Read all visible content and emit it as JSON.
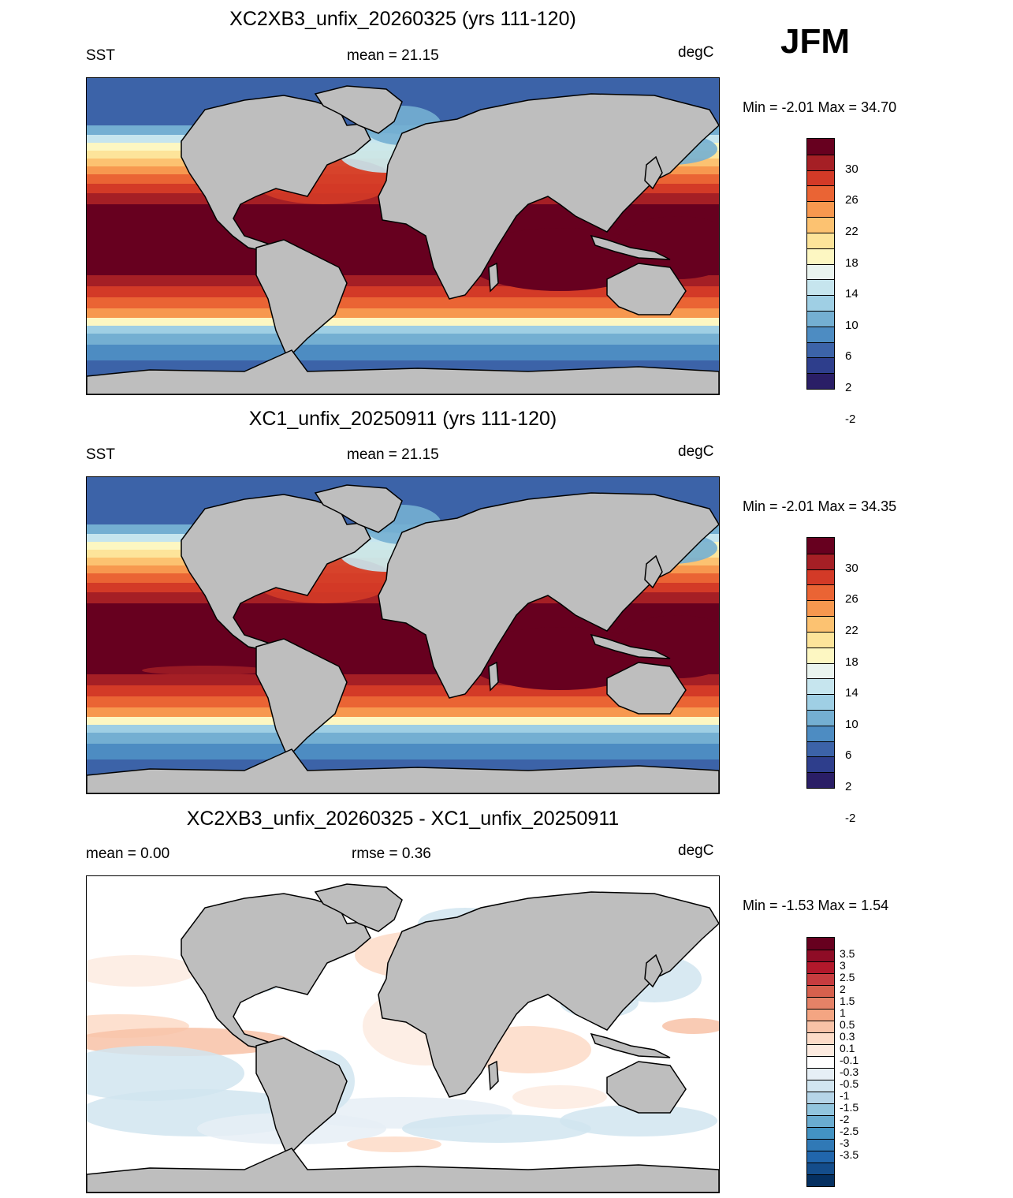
{
  "season": "JFM",
  "panels": [
    {
      "title": "XC2XB3_unfix_20260325 (yrs 111-120)",
      "left_label": "SST",
      "center_label": "mean =  21.15",
      "units": "degC",
      "minmax": "Min =  -2.01 Max =  34.70",
      "kind": "sst"
    },
    {
      "title": "XC1_unfix_20250911 (yrs 111-120)",
      "left_label": "SST",
      "center_label": "mean =  21.15",
      "units": "degC",
      "minmax": "Min =  -2.01 Max =  34.35",
      "kind": "sst"
    },
    {
      "title": "XC2XB3_unfix_20260325 - XC1_unfix_20250911",
      "left_label": "mean =   0.00",
      "center_label": "rmse =   0.36",
      "units": "degC",
      "minmax": "Min =  -1.53 Max =   1.54",
      "kind": "diff"
    }
  ],
  "sst_colorbar": {
    "colors": [
      "#67001f",
      "#a51f25",
      "#d33a27",
      "#ea6434",
      "#f7984f",
      "#fcc271",
      "#fde49a",
      "#fdf7c2",
      "#eaf4ef",
      "#c6e5ee",
      "#9fcfe4",
      "#74afd2",
      "#4d8cc2",
      "#3c63a8",
      "#2e3e8c",
      "#2a1e66"
    ],
    "labels": [
      "30",
      "26",
      "22",
      "18",
      "14",
      "10",
      "6",
      "2",
      "-2"
    ]
  },
  "diff_colorbar": {
    "colors": [
      "#67001f",
      "#8e0c26",
      "#b2182b",
      "#c73c3f",
      "#d6604d",
      "#e58267",
      "#f4a582",
      "#f8c2a7",
      "#fddbc7",
      "#fdebe0",
      "#ffffff",
      "#e6eff6",
      "#d1e5f0",
      "#b6d5e8",
      "#92c5de",
      "#6aacd0",
      "#4393c3",
      "#3079b6",
      "#2166ac",
      "#144d8b",
      "#053061"
    ],
    "labels": [
      "3.5",
      "3",
      "2.5",
      "2",
      "1.5",
      "1",
      "0.5",
      "0.3",
      "0.1",
      "-0.1",
      "-0.3",
      "-0.5",
      "-1",
      "-1.5",
      "-2",
      "-2.5",
      "-3",
      "-3.5"
    ]
  }
}
